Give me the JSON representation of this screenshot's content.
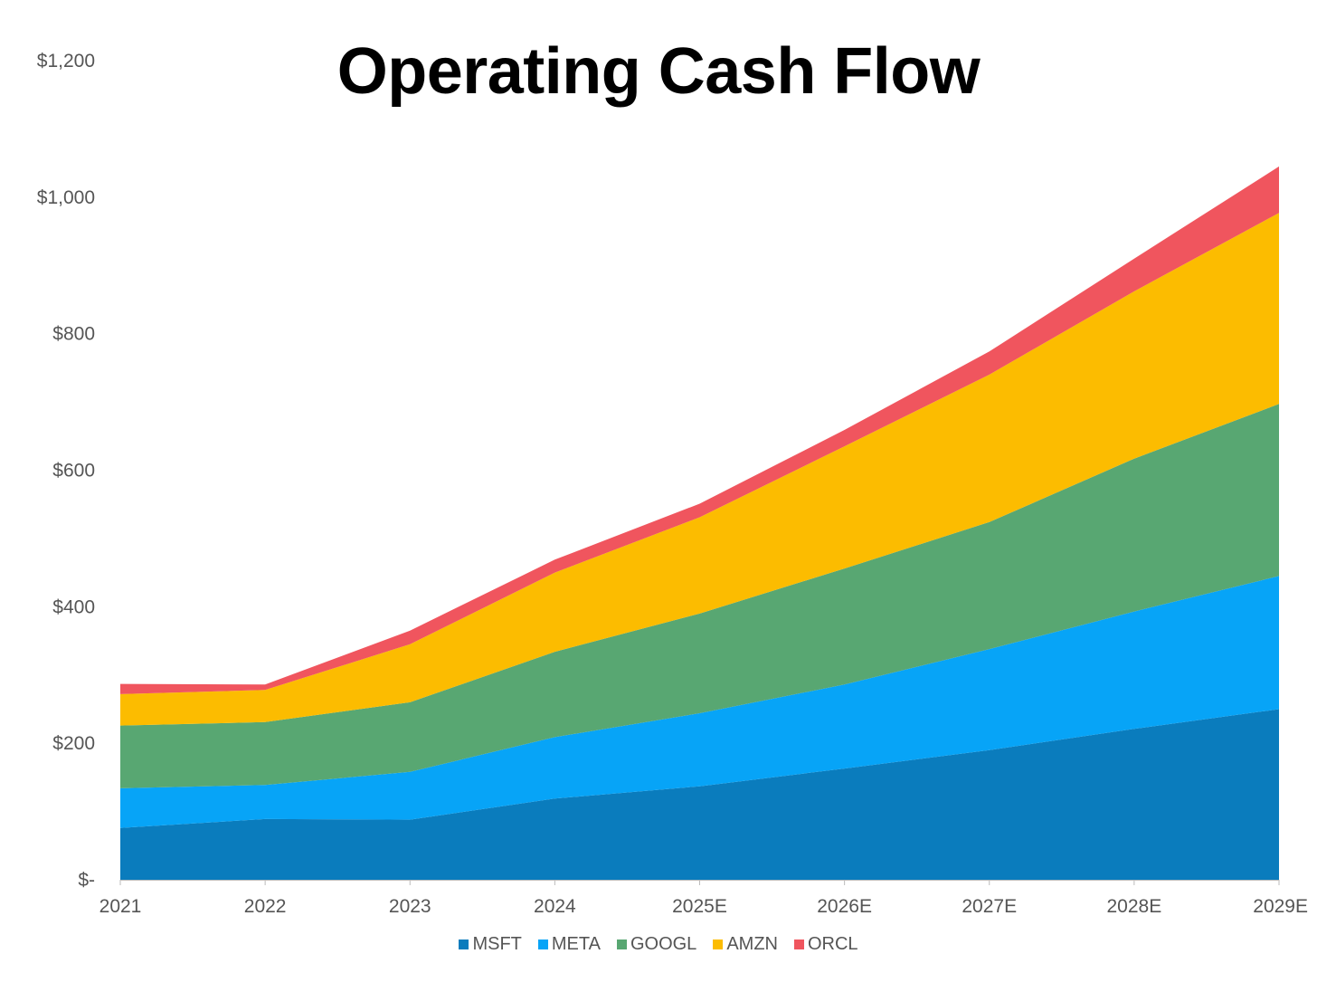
{
  "chart_data": {
    "type": "area",
    "stacked": true,
    "title": "Operating Cash Flow",
    "xlabel": "",
    "ylabel": "",
    "categories": [
      "2021",
      "2022",
      "2023",
      "2024",
      "2025E",
      "2026E",
      "2027E",
      "2028E",
      "2029E"
    ],
    "ylim": [
      0,
      1200
    ],
    "yticks": [
      0,
      200,
      400,
      600,
      800,
      1000,
      1200
    ],
    "ytick_labels": [
      "$-",
      "$200",
      "$400",
      "$600",
      "$800",
      "$1,000",
      "$1,200"
    ],
    "grid": false,
    "legend_position": "bottom",
    "series": [
      {
        "name": "MSFT",
        "color": "#0A7CBD",
        "values": [
          76,
          89,
          88,
          119,
          137,
          163,
          190,
          221,
          250
        ]
      },
      {
        "name": "META",
        "color": "#07A4F7",
        "values": [
          58,
          50,
          70,
          90,
          107,
          123,
          148,
          172,
          195
        ]
      },
      {
        "name": "GOOGL",
        "color": "#58A772",
        "values": [
          92,
          92,
          102,
          125,
          146,
          170,
          186,
          224,
          252
        ]
      },
      {
        "name": "AMZN",
        "color": "#FCBC00",
        "values": [
          46,
          47,
          85,
          116,
          141,
          179,
          216,
          245,
          280
        ]
      },
      {
        "name": "ORCL",
        "color": "#F0555E",
        "values": [
          15,
          8,
          20,
          19,
          20,
          24,
          34,
          48,
          68
        ]
      }
    ]
  }
}
